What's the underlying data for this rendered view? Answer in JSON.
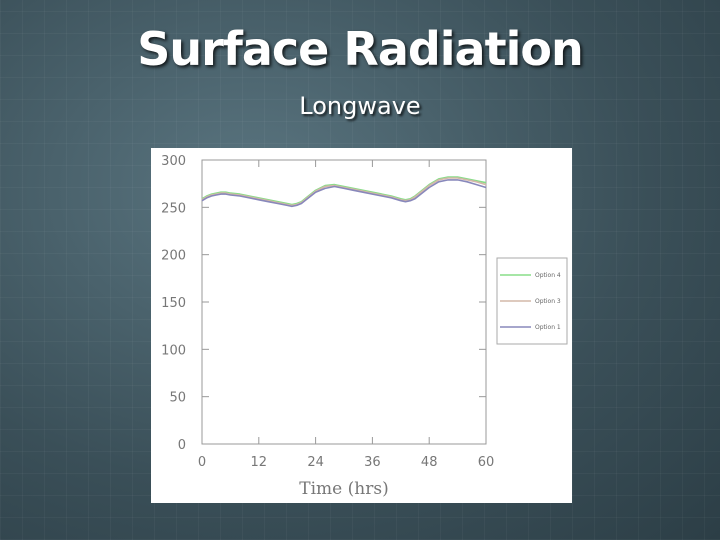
{
  "slide": {
    "title": "Surface Radiation",
    "subtitle": "Longwave"
  },
  "chart_data": {
    "type": "line",
    "title": "",
    "xlabel": "Time  (hrs)",
    "ylabel": "",
    "xlim": [
      0,
      60
    ],
    "ylim": [
      0,
      300
    ],
    "xticks": [
      0,
      12,
      24,
      36,
      48,
      60
    ],
    "yticks": [
      0,
      50,
      100,
      150,
      200,
      250,
      300
    ],
    "grid": false,
    "legend_position": "right",
    "series": [
      {
        "name": "Option 4",
        "color": "#88dd88",
        "x": [
          0,
          1,
          2,
          3,
          4,
          5,
          6,
          8,
          10,
          12,
          14,
          16,
          18,
          19,
          20,
          21,
          22,
          24,
          26,
          28,
          30,
          32,
          34,
          36,
          38,
          40,
          42,
          43,
          44,
          45,
          46,
          48,
          50,
          52,
          54,
          56,
          58,
          60
        ],
        "y": [
          259,
          262,
          264,
          265,
          266,
          266,
          265,
          264,
          262,
          260,
          258,
          256,
          254,
          253,
          254,
          256,
          260,
          268,
          273,
          274,
          272,
          270,
          268,
          266,
          264,
          262,
          259,
          258,
          259,
          262,
          266,
          274,
          280,
          282,
          282,
          280,
          278,
          276
        ]
      },
      {
        "name": "Option 3",
        "color": "#d4b8a8",
        "x": [
          0,
          1,
          2,
          3,
          4,
          5,
          6,
          8,
          10,
          12,
          14,
          16,
          18,
          19,
          20,
          21,
          22,
          24,
          26,
          28,
          30,
          32,
          34,
          36,
          38,
          40,
          42,
          43,
          44,
          45,
          46,
          48,
          50,
          52,
          54,
          56,
          58,
          60
        ],
        "y": [
          258,
          261,
          263,
          264,
          265,
          265,
          264,
          263,
          261,
          259,
          257,
          255,
          253,
          252,
          253,
          255,
          259,
          267,
          272,
          273,
          271,
          269,
          267,
          265,
          263,
          261,
          258,
          257,
          258,
          261,
          265,
          273,
          279,
          281,
          281,
          279,
          277,
          274
        ]
      },
      {
        "name": "Option 1",
        "color": "#8888bb",
        "x": [
          0,
          1,
          2,
          3,
          4,
          5,
          6,
          8,
          10,
          12,
          14,
          16,
          18,
          19,
          20,
          21,
          22,
          24,
          26,
          28,
          30,
          32,
          34,
          36,
          38,
          40,
          42,
          43,
          44,
          45,
          46,
          48,
          50,
          52,
          54,
          56,
          58,
          60
        ],
        "y": [
          257,
          260,
          262,
          263,
          264,
          264,
          263,
          262,
          260,
          258,
          256,
          254,
          252,
          251,
          252,
          254,
          258,
          266,
          270,
          272,
          270,
          268,
          266,
          264,
          262,
          260,
          257,
          256,
          257,
          259,
          263,
          271,
          277,
          279,
          279,
          277,
          274,
          271
        ]
      }
    ]
  }
}
